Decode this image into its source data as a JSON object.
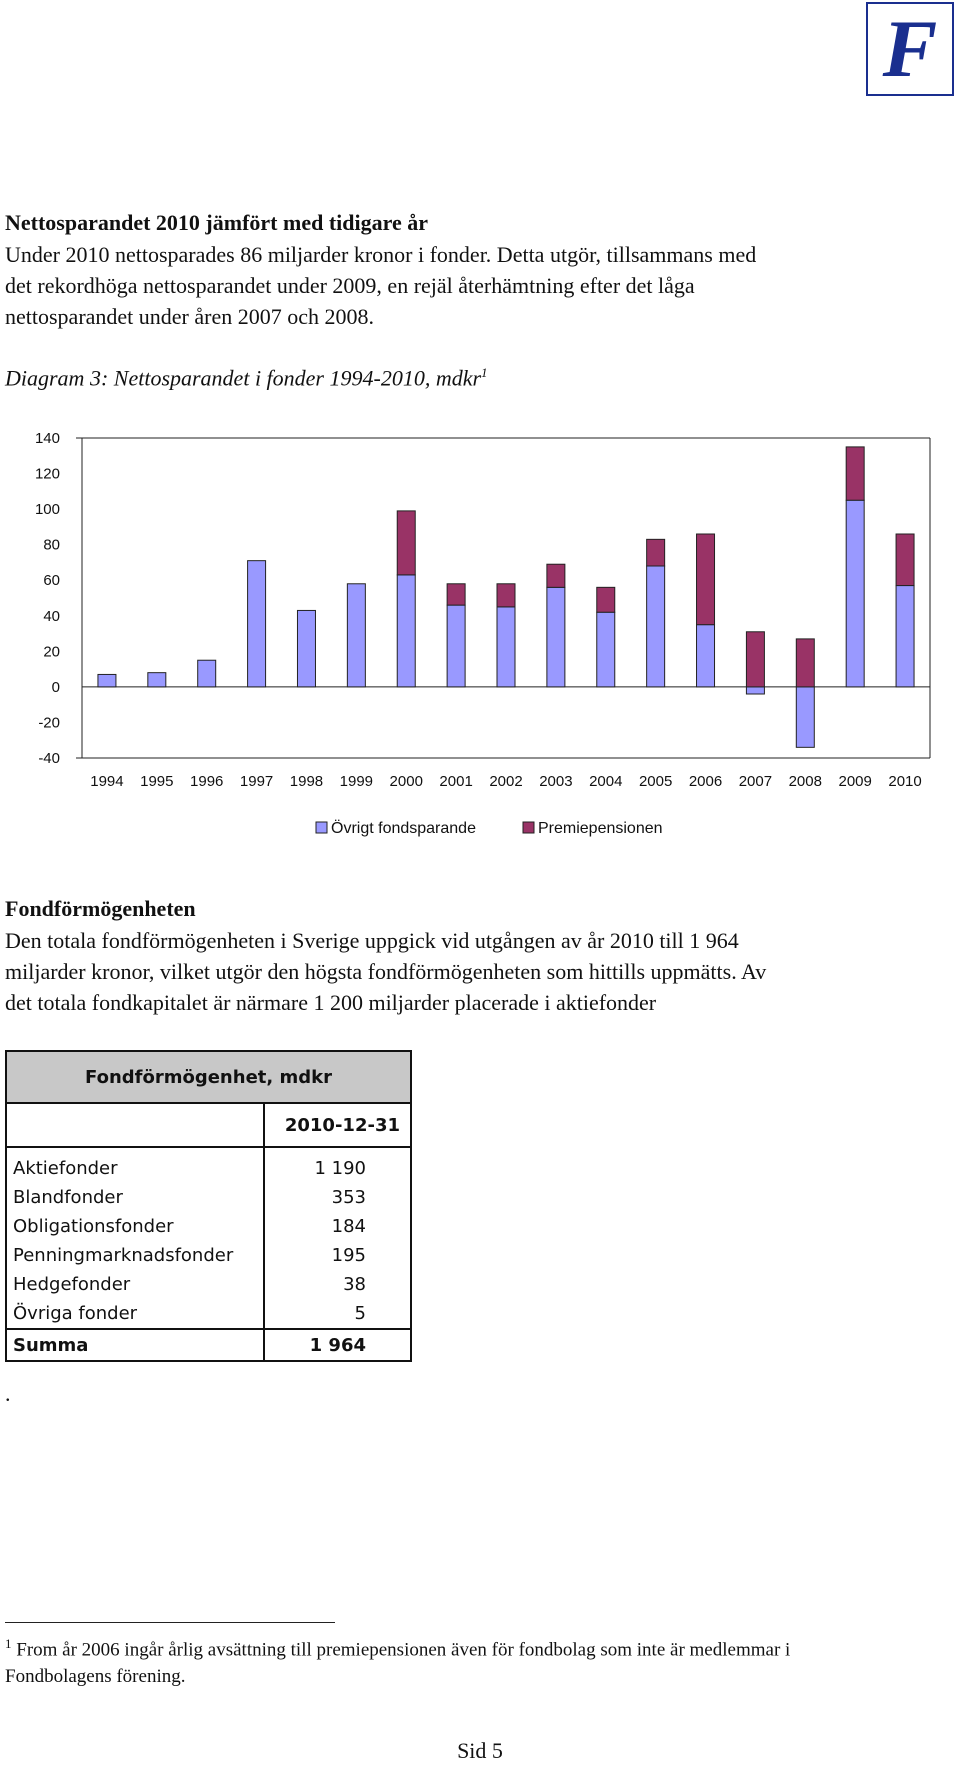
{
  "logo": {
    "letter": "F"
  },
  "section1": {
    "heading": "Nettosparandet 2010 jämfört med tidigare år",
    "lines": [
      "Under 2010 nettosparades 86 miljarder kronor i fonder. Detta utgör, tillsammans med",
      "det rekordhöga nettosparandet under 2009, en rejäl återhämtning efter det låga",
      "nettosparandet under åren 2007 och 2008."
    ]
  },
  "diagram": {
    "caption": "Diagram 3: Nettosparandet i fonder 1994-2010, mdkr",
    "caption_ref": "1"
  },
  "chart_data": {
    "type": "bar",
    "stacked": true,
    "title": "Diagram 3: Nettosparandet i fonder 1994-2010, mdkr",
    "categories": [
      "1994",
      "1995",
      "1996",
      "1997",
      "1998",
      "1999",
      "2000",
      "2001",
      "2002",
      "2003",
      "2004",
      "2005",
      "2006",
      "2007",
      "2008",
      "2009",
      "2010"
    ],
    "series": [
      {
        "name": "Övrigt fondsparande",
        "color": "#9999ff",
        "values": [
          7,
          8,
          15,
          71,
          43,
          58,
          63,
          46,
          45,
          56,
          42,
          68,
          35,
          -4,
          -34,
          105,
          57
        ]
      },
      {
        "name": "Premiepensionen",
        "color": "#993366",
        "values": [
          0,
          0,
          0,
          0,
          0,
          0,
          36,
          12,
          13,
          13,
          14,
          15,
          51,
          31,
          27,
          30,
          29
        ]
      }
    ],
    "yticks": [
      "140",
      "120",
      "100",
      "80",
      "60",
      "40",
      "20",
      "0",
      "-20",
      "-40"
    ],
    "ylim": [
      -40,
      140
    ],
    "xlabel": "",
    "ylabel": "",
    "legend_position": "bottom"
  },
  "section2": {
    "heading": "Fondförmögenheten",
    "lines": [
      "Den totala fondförmögenheten i Sverige uppgick vid utgången av år 2010 till 1 964",
      "miljarder kronor, vilket utgör den högsta fondförmögenheten som hittills uppmätts. Av",
      "det totala fondkapitalet är närmare 1 200 miljarder placerade i aktiefonder"
    ]
  },
  "table": {
    "title": "Fondförmögenhet, mdkr",
    "column_header": "2010-12-31",
    "rows": [
      {
        "label": "Aktiefonder",
        "value": "1 190"
      },
      {
        "label": "Blandfonder",
        "value": "353"
      },
      {
        "label": "Obligationsfonder",
        "value": "184"
      },
      {
        "label": "Penningmarknadsfonder",
        "value": "195"
      },
      {
        "label": "Hedgefonder",
        "value": "38"
      },
      {
        "label": "Övriga fonder",
        "value": "5"
      }
    ],
    "total": {
      "label": "Summa",
      "value": "1 964"
    }
  },
  "stray_dot": ".",
  "footnote": {
    "ref": "1",
    "line1": "From år 2006 ingår årlig avsättning till premiepensionen även för fondbolag som inte är medlemmar i",
    "line2": "Fondbolagens förening."
  },
  "page": {
    "label": "Sid 5"
  }
}
